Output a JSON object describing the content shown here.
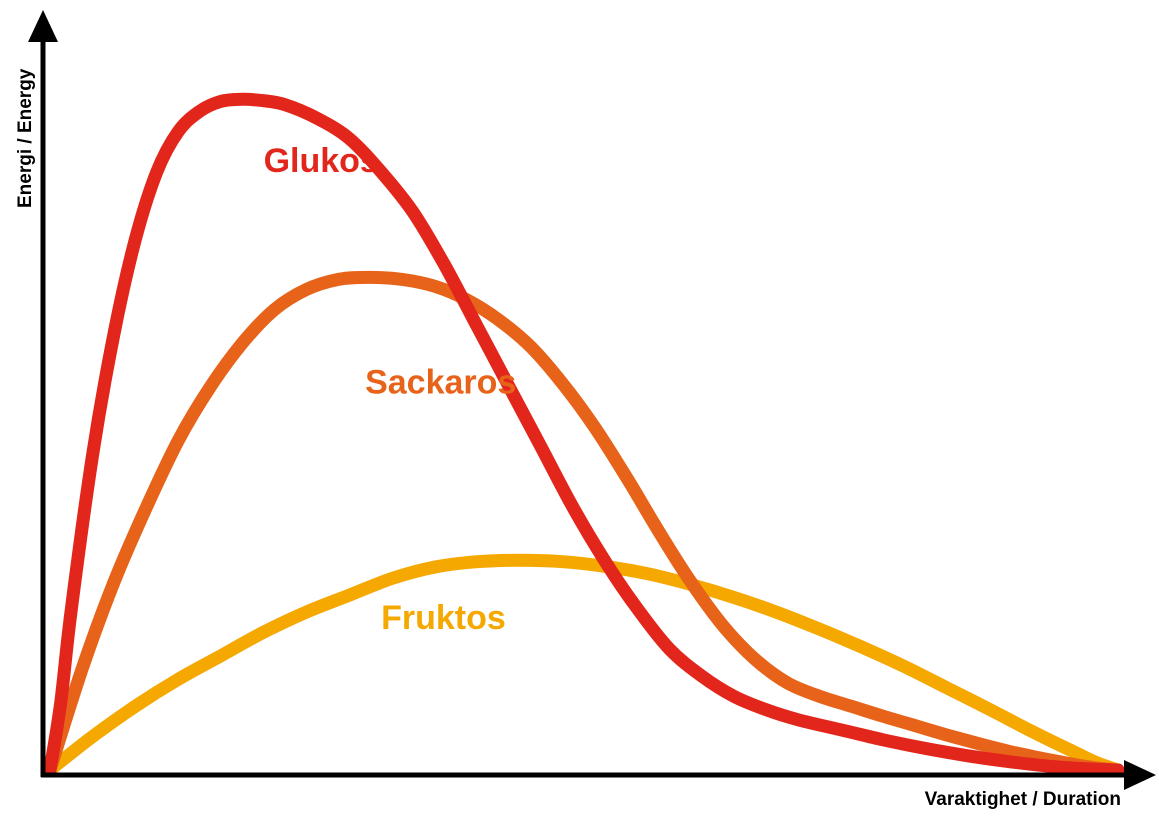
{
  "chart_data": {
    "type": "line",
    "title": "",
    "xlabel": "Varaktighet / Duration",
    "ylabel": "Energi / Energy",
    "xlim": [
      0,
      100
    ],
    "ylim": [
      0,
      100
    ],
    "grid": false,
    "legend": "inline labels",
    "series": [
      {
        "name": "Glukos",
        "color": "#e3261c",
        "points": [
          [
            0,
            0
          ],
          [
            1,
            10
          ],
          [
            2,
            24
          ],
          [
            4,
            47
          ],
          [
            6,
            65
          ],
          [
            8,
            79
          ],
          [
            10,
            89
          ],
          [
            12,
            95
          ],
          [
            14,
            98
          ],
          [
            16,
            99.5
          ],
          [
            18,
            99.8
          ],
          [
            20,
            99.6
          ],
          [
            22,
            99
          ],
          [
            25,
            97
          ],
          [
            28,
            94
          ],
          [
            31,
            89
          ],
          [
            34,
            83
          ],
          [
            37,
            75
          ],
          [
            40,
            66
          ],
          [
            43,
            57
          ],
          [
            46,
            48
          ],
          [
            49,
            39
          ],
          [
            52,
            31
          ],
          [
            55,
            24
          ],
          [
            58,
            18
          ],
          [
            61,
            14
          ],
          [
            64,
            11
          ],
          [
            67,
            9
          ],
          [
            70,
            7.5
          ],
          [
            74,
            6
          ],
          [
            78,
            4.5
          ],
          [
            82,
            3.2
          ],
          [
            86,
            2.1
          ],
          [
            90,
            1.2
          ],
          [
            94,
            0.5
          ],
          [
            98,
            0.1
          ],
          [
            100,
            0
          ]
        ]
      },
      {
        "name": "Sackaros",
        "color": "#e8631a",
        "points": [
          [
            0,
            0
          ],
          [
            3,
            15
          ],
          [
            6,
            28
          ],
          [
            9,
            39
          ],
          [
            12,
            49
          ],
          [
            15,
            57
          ],
          [
            18,
            63.5
          ],
          [
            21,
            68.5
          ],
          [
            24,
            71.5
          ],
          [
            27,
            73
          ],
          [
            30,
            73.3
          ],
          [
            33,
            73
          ],
          [
            36,
            72
          ],
          [
            39,
            70
          ],
          [
            42,
            67
          ],
          [
            45,
            63
          ],
          [
            48,
            57.5
          ],
          [
            51,
            51
          ],
          [
            54,
            43.5
          ],
          [
            57,
            35.5
          ],
          [
            60,
            28
          ],
          [
            63,
            21.5
          ],
          [
            66,
            16.5
          ],
          [
            69,
            13
          ],
          [
            72,
            11
          ],
          [
            75,
            9.5
          ],
          [
            78,
            8
          ],
          [
            81,
            6.6
          ],
          [
            84,
            5.2
          ],
          [
            87,
            3.9
          ],
          [
            90,
            2.7
          ],
          [
            93,
            1.7
          ],
          [
            96,
            0.8
          ],
          [
            98,
            0.3
          ],
          [
            100,
            0
          ]
        ]
      },
      {
        "name": "Fruktos",
        "color": "#f5a800",
        "points": [
          [
            0,
            0
          ],
          [
            4,
            5
          ],
          [
            8,
            9.5
          ],
          [
            12,
            13.5
          ],
          [
            16,
            17
          ],
          [
            20,
            20.5
          ],
          [
            24,
            23.5
          ],
          [
            28,
            26
          ],
          [
            32,
            28.5
          ],
          [
            36,
            30.2
          ],
          [
            40,
            31
          ],
          [
            44,
            31.2
          ],
          [
            48,
            31
          ],
          [
            52,
            30.3
          ],
          [
            56,
            29.2
          ],
          [
            60,
            27.6
          ],
          [
            64,
            25.7
          ],
          [
            68,
            23.5
          ],
          [
            72,
            21
          ],
          [
            76,
            18.3
          ],
          [
            80,
            15.4
          ],
          [
            84,
            12.2
          ],
          [
            88,
            9
          ],
          [
            92,
            5.7
          ],
          [
            96,
            2.6
          ],
          [
            98,
            1.1
          ],
          [
            100,
            0
          ]
        ]
      }
    ],
    "annotations": [
      {
        "text": "Glukos",
        "series": "Glukos",
        "at": [
          20,
          89
        ]
      },
      {
        "text": "Sackaros",
        "series": "Sackaros",
        "at": [
          29.5,
          56
        ]
      },
      {
        "text": "Fruktos",
        "series": "Fruktos",
        "at": [
          31,
          21
        ]
      }
    ]
  }
}
